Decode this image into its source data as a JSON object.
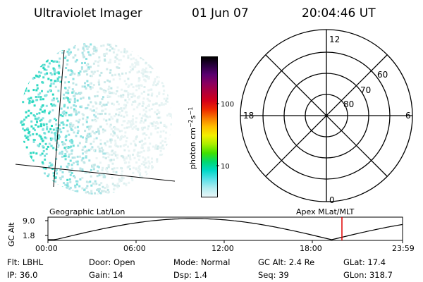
{
  "header": {
    "title": "Ultraviolet Imager",
    "date": "01 Jun 07",
    "time": "20:04:46 UT"
  },
  "colorbar": {
    "unit_label": "photon cm",
    "unit_exp1": "−2",
    "unit_mid": "s",
    "unit_exp2": "−1",
    "ticks": [
      "100",
      "10"
    ],
    "colors": [
      "#000000",
      "#2a0040",
      "#5a0070",
      "#8a0060",
      "#b0003a",
      "#d4001a",
      "#ee2a00",
      "#f77a00",
      "#ffc000",
      "#f2f000",
      "#a8ee00",
      "#40e000",
      "#00d870",
      "#00d8c8",
      "#58e0e8",
      "#b0ecf0",
      "#e8f6f8"
    ]
  },
  "polar_plot": {
    "hour_labels": {
      "top": "12",
      "left": "18",
      "right": "6",
      "bottom": "0"
    },
    "lat_labels": [
      "60",
      "70",
      "80"
    ]
  },
  "timeline": {
    "ylabel": "GC Alt",
    "ymax_label": "9.0",
    "ymin_label": "1.8",
    "left_caption": "Geographic Lat/Lon",
    "right_caption": "Apex  MLat/MLT",
    "time_ticks": [
      "00:00",
      "06:00",
      "12:00",
      "18:00",
      "23:59"
    ],
    "marker_color": "#e00000"
  },
  "status": {
    "flt": "Flt: LBHL",
    "door": "Door: Open",
    "mode": "Mode: Normal",
    "gc_alt": "GC Alt: 2.4 Re",
    "glat": "GLat:  17.4",
    "ip": "IP: 36.0",
    "gain": "Gain: 14",
    "dsp": "Dsp:     1.4",
    "seq": "Seq: 39",
    "glon": "GLon: 318.7"
  }
}
